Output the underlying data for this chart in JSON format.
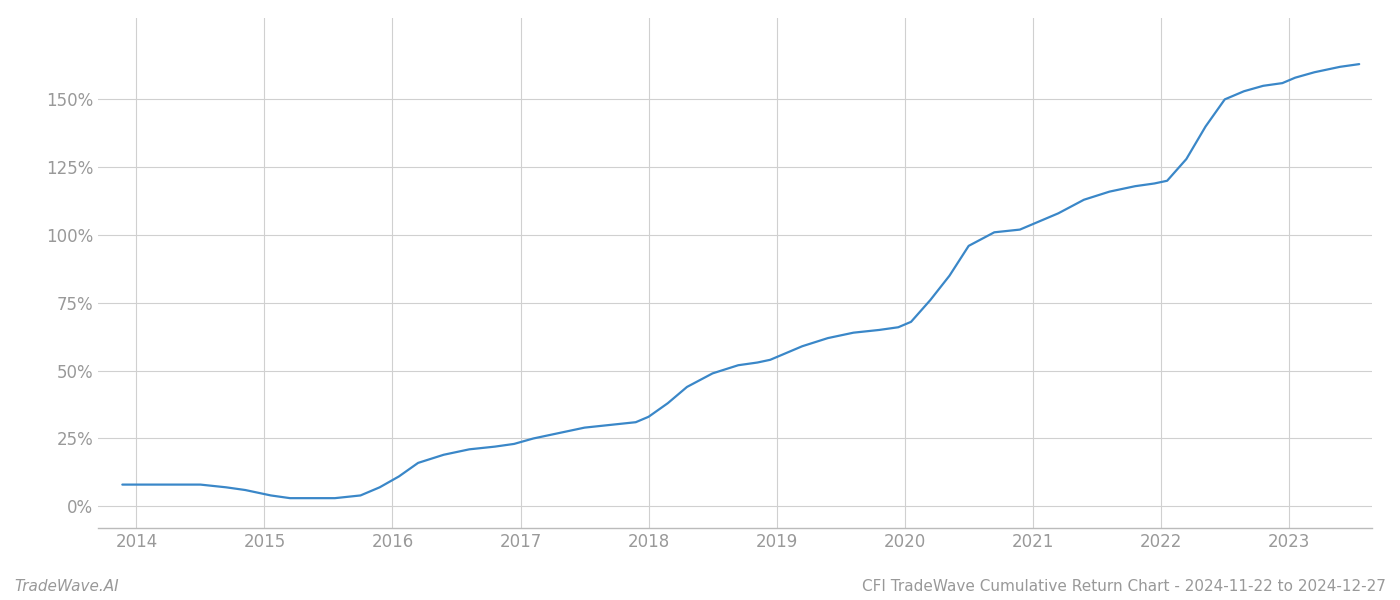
{
  "title": "CFI TradeWave Cumulative Return Chart - 2024-11-22 to 2024-12-27",
  "watermark": "TradeWave.AI",
  "line_color": "#3a87c8",
  "background_color": "#ffffff",
  "grid_color": "#d0d0d0",
  "x_years": [
    2014,
    2015,
    2016,
    2017,
    2018,
    2019,
    2020,
    2021,
    2022,
    2023
  ],
  "x_data": [
    2013.89,
    2014.0,
    2014.15,
    2014.3,
    2014.5,
    2014.7,
    2014.85,
    2014.95,
    2015.05,
    2015.2,
    2015.4,
    2015.55,
    2015.75,
    2015.9,
    2016.05,
    2016.2,
    2016.4,
    2016.6,
    2016.8,
    2016.95,
    2017.1,
    2017.3,
    2017.5,
    2017.7,
    2017.9,
    2018.0,
    2018.15,
    2018.3,
    2018.5,
    2018.7,
    2018.85,
    2018.95,
    2019.05,
    2019.2,
    2019.4,
    2019.6,
    2019.8,
    2019.95,
    2020.05,
    2020.2,
    2020.35,
    2020.5,
    2020.7,
    2020.9,
    2021.0,
    2021.2,
    2021.4,
    2021.6,
    2021.8,
    2021.95,
    2022.05,
    2022.2,
    2022.35,
    2022.5,
    2022.65,
    2022.8,
    2022.95,
    2023.05,
    2023.2,
    2023.4,
    2023.55
  ],
  "y_data": [
    8,
    8,
    8,
    8,
    8,
    7,
    6,
    5,
    4,
    3,
    3,
    3,
    4,
    7,
    11,
    16,
    19,
    21,
    22,
    23,
    25,
    27,
    29,
    30,
    31,
    33,
    38,
    44,
    49,
    52,
    53,
    54,
    56,
    59,
    62,
    64,
    65,
    66,
    68,
    76,
    85,
    96,
    101,
    102,
    104,
    108,
    113,
    116,
    118,
    119,
    120,
    128,
    140,
    150,
    153,
    155,
    156,
    158,
    160,
    162,
    163
  ],
  "ylim": [
    -8,
    180
  ],
  "xlim": [
    2013.7,
    2023.65
  ],
  "yticks": [
    0,
    25,
    50,
    75,
    100,
    125,
    150
  ],
  "ytick_labels": [
    "0%",
    "25%",
    "50%",
    "75%",
    "100%",
    "125%",
    "150%"
  ],
  "title_fontsize": 11,
  "watermark_fontsize": 11,
  "tick_color": "#999999",
  "tick_fontsize": 12,
  "line_width": 1.6,
  "axis_color": "#bbbbbb"
}
